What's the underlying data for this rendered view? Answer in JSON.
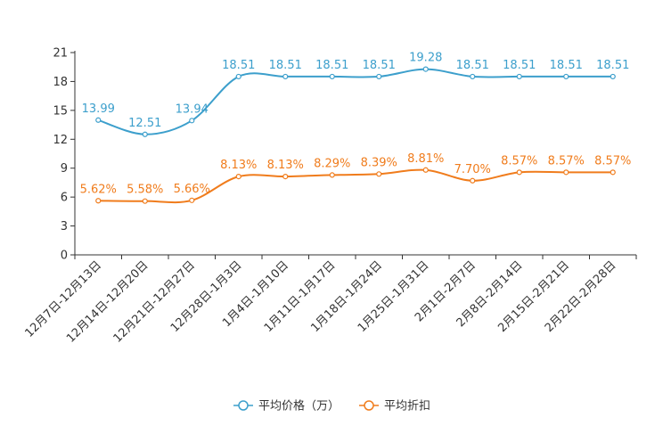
{
  "chart_data": {
    "type": "line",
    "title": "",
    "xlabel": "",
    "ylabel": "",
    "ylim": [
      0,
      21
    ],
    "yticks": [
      0,
      3,
      6,
      9,
      12,
      15,
      18,
      21
    ],
    "categories": [
      "12月7日-12月13日",
      "12月14日-12月20日",
      "12月21日-12月27日",
      "12月28日-1月3日",
      "1月4日-1月10日",
      "1月11日-1月17日",
      "1月18日-1月24日",
      "1月25日-1月31日",
      "2月1日-2月7日",
      "2月8日-2月14日",
      "2月15日-2月21日",
      "2月22日-2月28日"
    ],
    "series": [
      {
        "name": "平均价格（万）",
        "color": "#3c9fcc",
        "values": [
          13.99,
          12.51,
          13.94,
          18.51,
          18.51,
          18.51,
          18.51,
          19.28,
          18.51,
          18.51,
          18.51,
          18.51
        ],
        "labels": [
          "13.99",
          "12.51",
          "13.94",
          "18.51",
          "18.51",
          "18.51",
          "18.51",
          "19.28",
          "18.51",
          "18.51",
          "18.51",
          "18.51"
        ]
      },
      {
        "name": "平均折扣",
        "color": "#f07c1c",
        "values": [
          5.62,
          5.58,
          5.66,
          8.13,
          8.13,
          8.29,
          8.39,
          8.81,
          7.7,
          8.57,
          8.57,
          8.57
        ],
        "labels": [
          "5.62%",
          "5.58%",
          "5.66%",
          "8.13%",
          "8.13%",
          "8.29%",
          "8.39%",
          "8.81%",
          "7.70%",
          "8.57%",
          "8.57%",
          "8.57%"
        ]
      }
    ],
    "legend_position": "bottom-center",
    "grid": false
  }
}
